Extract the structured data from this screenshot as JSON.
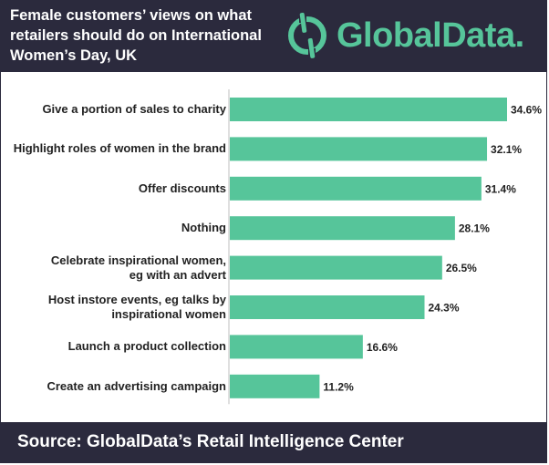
{
  "header": {
    "title_lines": [
      "Female customers’ views on what",
      "retailers should do on International",
      "Women’s Day, UK"
    ],
    "logo_text": "GlobalData.",
    "logo_icon": "globaldata-logo-icon"
  },
  "colors": {
    "header_bg": "#2b2a3d",
    "bar": "#56c59a",
    "brand": "#56c59a"
  },
  "chart_data": {
    "type": "bar",
    "orientation": "horizontal",
    "title": "Female customers’ views on what retailers should do on International Women’s Day, UK",
    "categories": [
      [
        "Give a portion of sales to charity"
      ],
      [
        "Highlight roles of women in the brand"
      ],
      [
        "Offer discounts"
      ],
      [
        "Nothing"
      ],
      [
        "Celebrate inspirational women,",
        "eg with an advert"
      ],
      [
        "Host instore events, eg talks by",
        "inspirational women"
      ],
      [
        "Launch a product collection"
      ],
      [
        "Create an advertising campaign"
      ]
    ],
    "values": [
      34.6,
      32.1,
      31.4,
      28.1,
      26.5,
      24.3,
      16.6,
      11.2
    ],
    "value_labels": [
      "34.6%",
      "32.1%",
      "31.4%",
      "28.1%",
      "26.5%",
      "24.3%",
      "16.6%",
      "11.2%"
    ],
    "unit": "%",
    "xlim": [
      0,
      34.6
    ],
    "grid": false,
    "legend": "none"
  },
  "footer": {
    "source": "Source:  GlobalData’s Retail Intelligence Center"
  }
}
